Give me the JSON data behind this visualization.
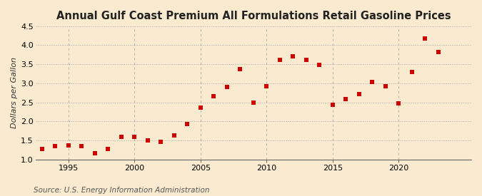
{
  "title": "Annual Gulf Coast Premium All Formulations Retail Gasoline Prices",
  "ylabel": "Dollars per Gallon",
  "source": "Source: U.S. Energy Information Administration",
  "background_color": "#faebd0",
  "x_data": [
    1993,
    1994,
    1995,
    1996,
    1997,
    1998,
    1999,
    2000,
    2001,
    2002,
    2003,
    2004,
    2005,
    2006,
    2007,
    2008,
    2009,
    2010,
    2011,
    2012,
    2013,
    2014,
    2015,
    2016,
    2017,
    2018,
    2019,
    2020,
    2021,
    2022,
    2023
  ],
  "y_data": [
    1.27,
    1.35,
    1.37,
    1.35,
    1.17,
    1.27,
    1.59,
    1.59,
    1.51,
    1.47,
    1.64,
    1.93,
    2.37,
    2.66,
    2.9,
    3.37,
    2.49,
    2.93,
    3.62,
    3.7,
    3.62,
    3.49,
    2.43,
    2.58,
    2.71,
    3.04,
    2.92,
    2.48,
    3.3,
    4.17,
    3.82
  ],
  "marker_color": "#cc0000",
  "marker_size": 18,
  "ylim": [
    1.0,
    4.5
  ],
  "yticks": [
    1.0,
    1.5,
    2.0,
    2.5,
    3.0,
    3.5,
    4.0,
    4.5
  ],
  "xlim": [
    1992.5,
    2025.5
  ],
  "xticks": [
    1995,
    2000,
    2005,
    2010,
    2015,
    2020
  ],
  "hgrid_color": "#aaaaaa",
  "vgrid_color": "#aaaaaa",
  "title_fontsize": 10.5,
  "tick_fontsize": 8,
  "ylabel_fontsize": 8,
  "source_fontsize": 7.5
}
